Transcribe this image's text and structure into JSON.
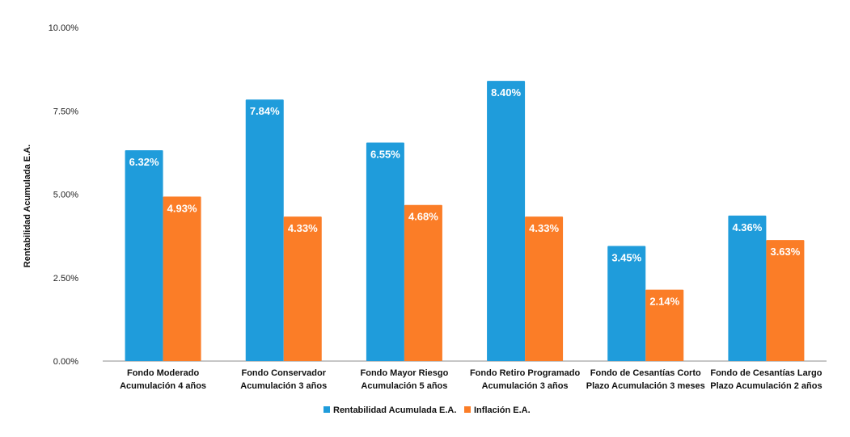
{
  "chart_data": {
    "type": "bar",
    "ylabel": "Rentabilidad Acumulada E.A.",
    "ylim": [
      0,
      10
    ],
    "yticks": [
      "0.00%",
      "2.50%",
      "5.00%",
      "7.50%",
      "10.00%"
    ],
    "ytick_values": [
      0,
      2.5,
      5,
      7.5,
      10
    ],
    "grid": false,
    "legend_position": "bottom",
    "categories": [
      [
        "Fondo Moderado",
        "Acumulación 4 años"
      ],
      [
        "Fondo Conservador",
        "Acumulación 3 años"
      ],
      [
        "Fondo Mayor Riesgo",
        "Acumulación 5 años"
      ],
      [
        "Fondo Retiro Programado",
        "Acumulación 3 años"
      ],
      [
        "Fondo de Cesantías Corto",
        "Plazo Acumulación 3 meses"
      ],
      [
        "Fondo de Cesantías Largo",
        "Plazo Acumulación 2 años"
      ]
    ],
    "series": [
      {
        "name": "Rentabilidad Acumulada E.A.",
        "color": "#1f9cdb",
        "values": [
          6.32,
          7.84,
          6.55,
          8.4,
          3.45,
          4.36
        ],
        "labels": [
          "6.32%",
          "7.84%",
          "6.55%",
          "8.40%",
          "3.45%",
          "4.36%"
        ]
      },
      {
        "name": "Inflación E.A.",
        "color": "#fb7d27",
        "values": [
          4.93,
          4.33,
          4.68,
          4.33,
          2.14,
          3.63
        ],
        "labels": [
          "4.93%",
          "4.33%",
          "4.68%",
          "4.33%",
          "2.14%",
          "3.63%"
        ]
      }
    ]
  }
}
